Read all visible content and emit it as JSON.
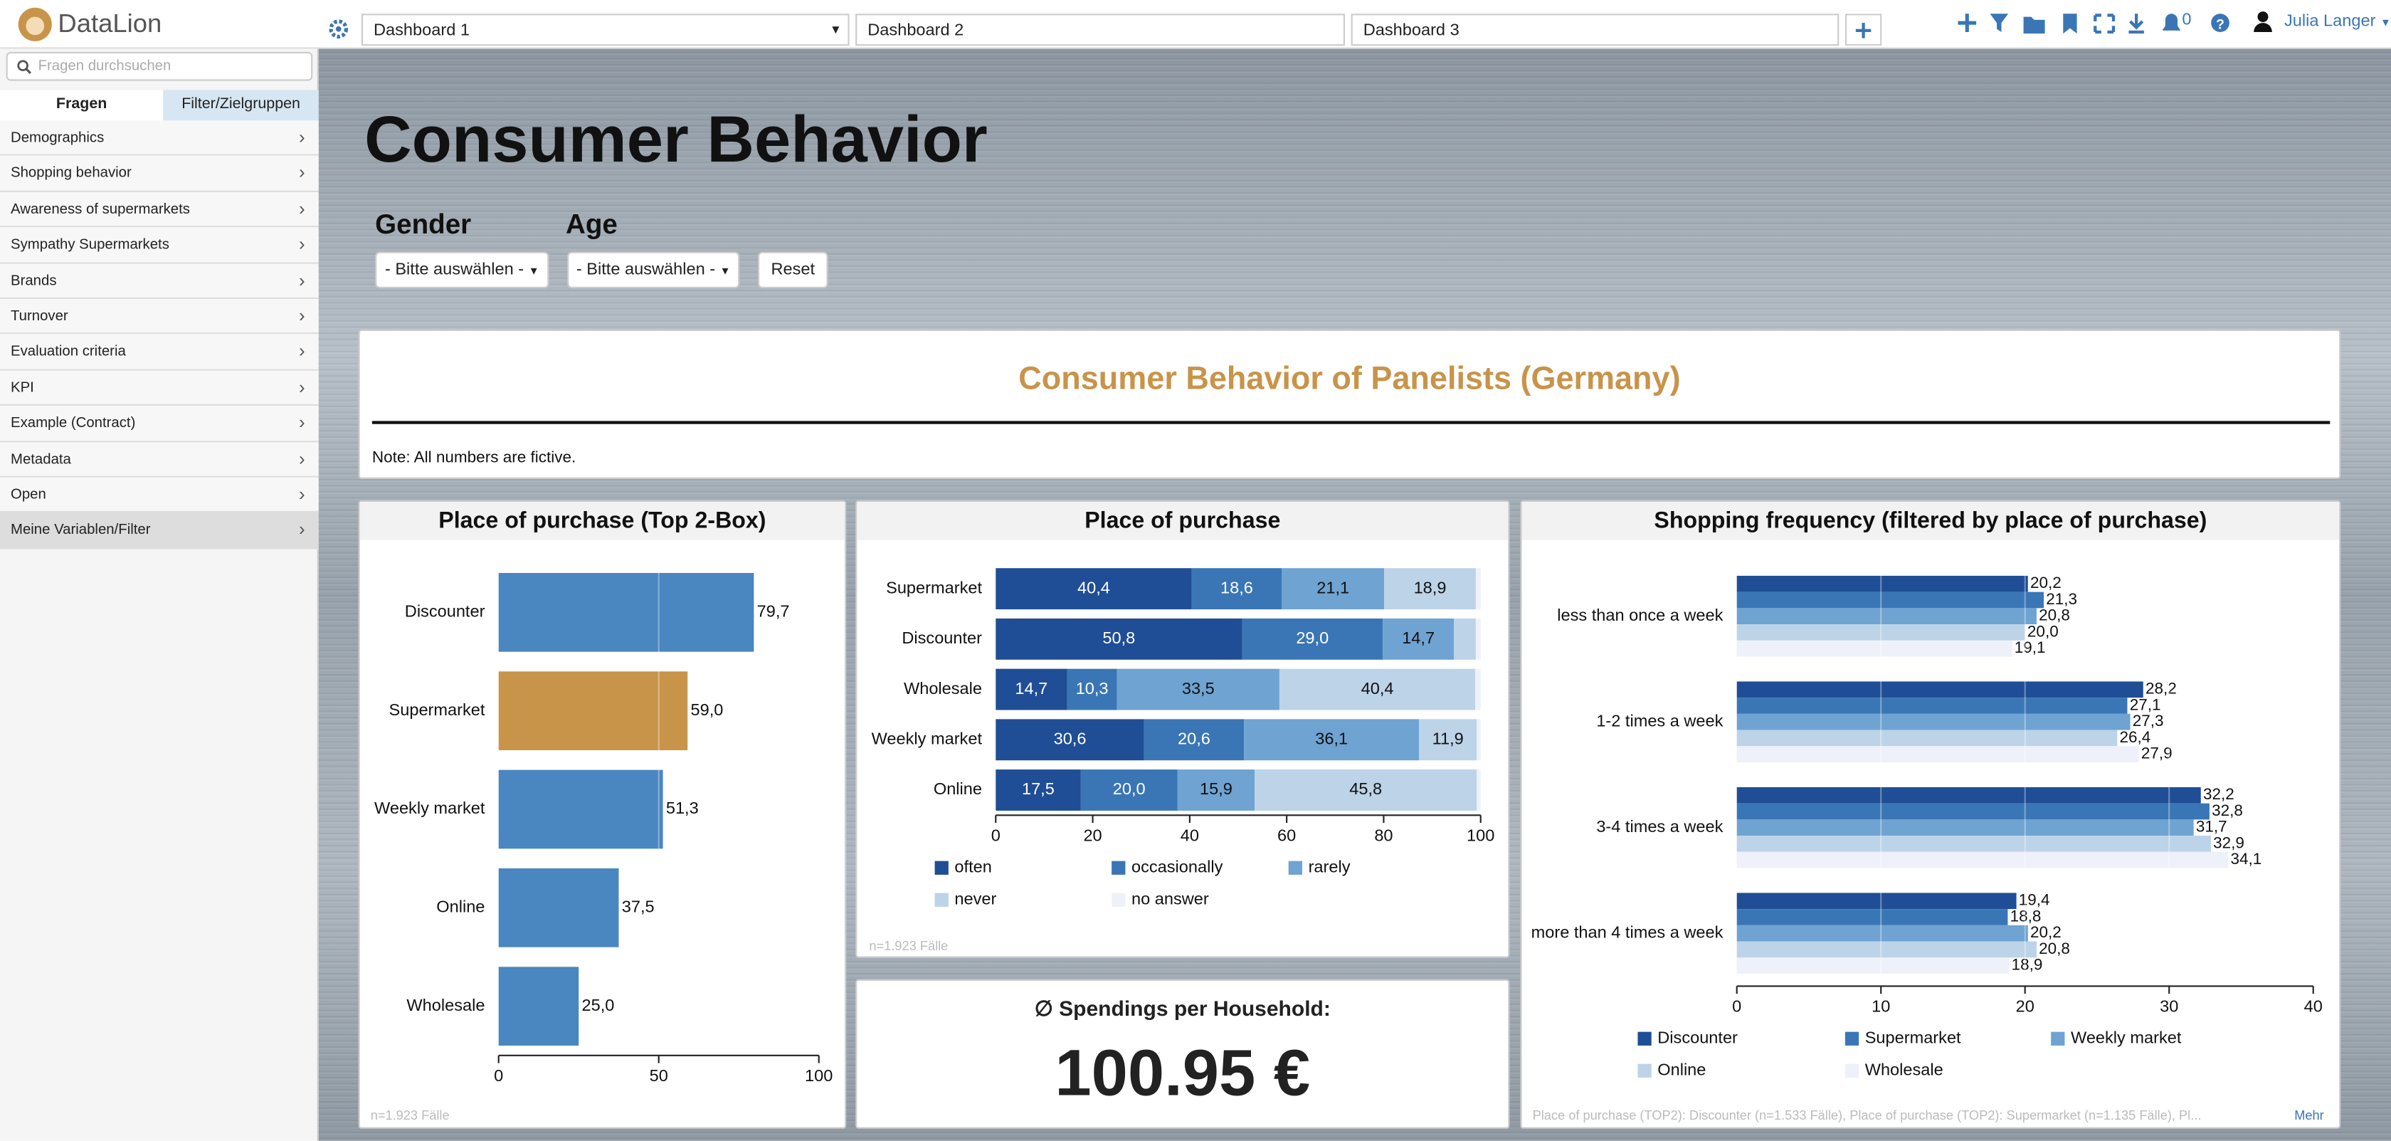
{
  "app": {
    "brand": "DataLion",
    "tabs": [
      "Dashboard 1",
      "Dashboard 2",
      "Dashboard 3"
    ],
    "notifications": "0",
    "user": "Julia Langer",
    "search_placeholder": "Fragen durchsuchen",
    "sidebar_tabs": [
      "Fragen",
      "Filter/Zielgruppen"
    ],
    "sidebar_items": [
      "Demographics",
      "Shopping behavior",
      "Awareness of supermarkets",
      "Sympathy Supermarkets",
      "Brands",
      "Turnover",
      "Evaluation criteria",
      "KPI",
      "Example (Contract)",
      "Metadata",
      "Open",
      "Meine Variablen/Filter"
    ]
  },
  "dashboard": {
    "title": "Consumer Behavior",
    "filters": [
      {
        "label": "Gender",
        "select": "- Bitte auswählen -"
      },
      {
        "label": "Age",
        "select": "- Bitte auswählen -"
      }
    ],
    "reset": "Reset",
    "banner_title": "Consumer Behavior of Panelists (Germany)",
    "note": "Note: All numbers are fictive.",
    "kpi": {
      "title": "∅ Spendings per Household:",
      "value": "100.95 €"
    }
  },
  "chart_data": [
    {
      "type": "bar",
      "orientation": "horizontal",
      "title": "Place of purchase (Top 2-Box)",
      "categories": [
        "Discounter",
        "Supermarket",
        "Weekly market",
        "Online",
        "Wholesale"
      ],
      "values": [
        79.7,
        59.0,
        51.3,
        37.5,
        25.0
      ],
      "value_labels": [
        "79,7",
        "59,0",
        "51,3",
        "37,5",
        "25,0"
      ],
      "colors": [
        "#4a86c0",
        "#c8944a",
        "#4a86c0",
        "#4a86c0",
        "#4a86c0"
      ],
      "xlim": [
        0,
        100
      ],
      "xticks": [
        0,
        50,
        100
      ],
      "grid": true,
      "note": "n=1.923 Fälle"
    },
    {
      "type": "bar",
      "orientation": "horizontal",
      "stacked": true,
      "title": "Place of purchase",
      "categories": [
        "Supermarket",
        "Discounter",
        "Wholesale",
        "Weekly market",
        "Online"
      ],
      "series": [
        {
          "name": "often",
          "color": "#1f4e96",
          "values": [
            40.4,
            50.8,
            14.7,
            30.6,
            17.5
          ],
          "value_labels": [
            "40,4",
            "50,8",
            "14,7",
            "30,6",
            "17,5"
          ]
        },
        {
          "name": "occasionally",
          "color": "#3a76b5",
          "values": [
            18.6,
            29.0,
            10.3,
            20.6,
            20.0
          ],
          "value_labels": [
            "18,6",
            "29,0",
            "10,3",
            "20,6",
            "20,0"
          ]
        },
        {
          "name": "rarely",
          "color": "#6fa3d2",
          "values": [
            21.1,
            14.7,
            33.5,
            36.1,
            15.9
          ],
          "value_labels": [
            "21,1",
            "14,7",
            "33,5",
            "36,1",
            "15,9"
          ]
        },
        {
          "name": "never",
          "color": "#bcd3e8",
          "values": [
            18.9,
            4.5,
            40.4,
            11.9,
            45.8
          ],
          "value_labels": [
            "18,9",
            null,
            "40,4",
            "11,9",
            "45,8"
          ]
        },
        {
          "name": "no answer",
          "color": "#eef2f8",
          "values": [
            1.0,
            1.0,
            1.1,
            0.8,
            0.8
          ],
          "value_labels": [
            null,
            null,
            null,
            null,
            null
          ]
        }
      ],
      "xlim": [
        0,
        100
      ],
      "xticks": [
        0,
        20,
        40,
        60,
        80,
        100
      ],
      "grid": false,
      "legend": "bottom",
      "note": "n=1.923 Fälle"
    },
    {
      "type": "bar",
      "orientation": "horizontal",
      "title": "Shopping frequency (filtered by place of purchase)",
      "categories": [
        "less than once a week",
        "1-2 times a week",
        "3-4 times a week",
        "more than 4 times a week"
      ],
      "series": [
        {
          "name": "Discounter",
          "color": "#1f4e96",
          "values": [
            20.2,
            28.2,
            32.2,
            19.4
          ],
          "value_labels": [
            "20,2",
            "28,2",
            "32,2",
            "19,4"
          ]
        },
        {
          "name": "Supermarket",
          "color": "#3a76b5",
          "values": [
            21.3,
            27.1,
            32.8,
            18.8
          ],
          "value_labels": [
            "21,3",
            "27,1",
            "32,8",
            "18,8"
          ]
        },
        {
          "name": "Weekly market",
          "color": "#6fa3d2",
          "values": [
            20.8,
            27.3,
            31.7,
            20.2
          ],
          "value_labels": [
            "20,8",
            "27,3",
            "31,7",
            "20,2"
          ]
        },
        {
          "name": "Online",
          "color": "#bcd3e8",
          "values": [
            20.0,
            26.4,
            32.9,
            20.8
          ],
          "value_labels": [
            "20,0",
            "26,4",
            "32,9",
            "20,8"
          ]
        },
        {
          "name": "Wholesale",
          "color": "#eef0fa",
          "values": [
            19.1,
            27.9,
            34.1,
            18.9
          ],
          "value_labels": [
            "19,1",
            "27,9",
            "34,1",
            "18,9"
          ]
        }
      ],
      "xlim": [
        0,
        40
      ],
      "xticks": [
        0,
        10,
        20,
        30,
        40
      ],
      "grid": true,
      "legend": "bottom",
      "note": "Place of purchase (TOP2): Discounter (n=1.533 Fälle), Place of purchase (TOP2): Supermarket (n=1.135 Fälle), Pl...",
      "more": "Mehr"
    }
  ]
}
